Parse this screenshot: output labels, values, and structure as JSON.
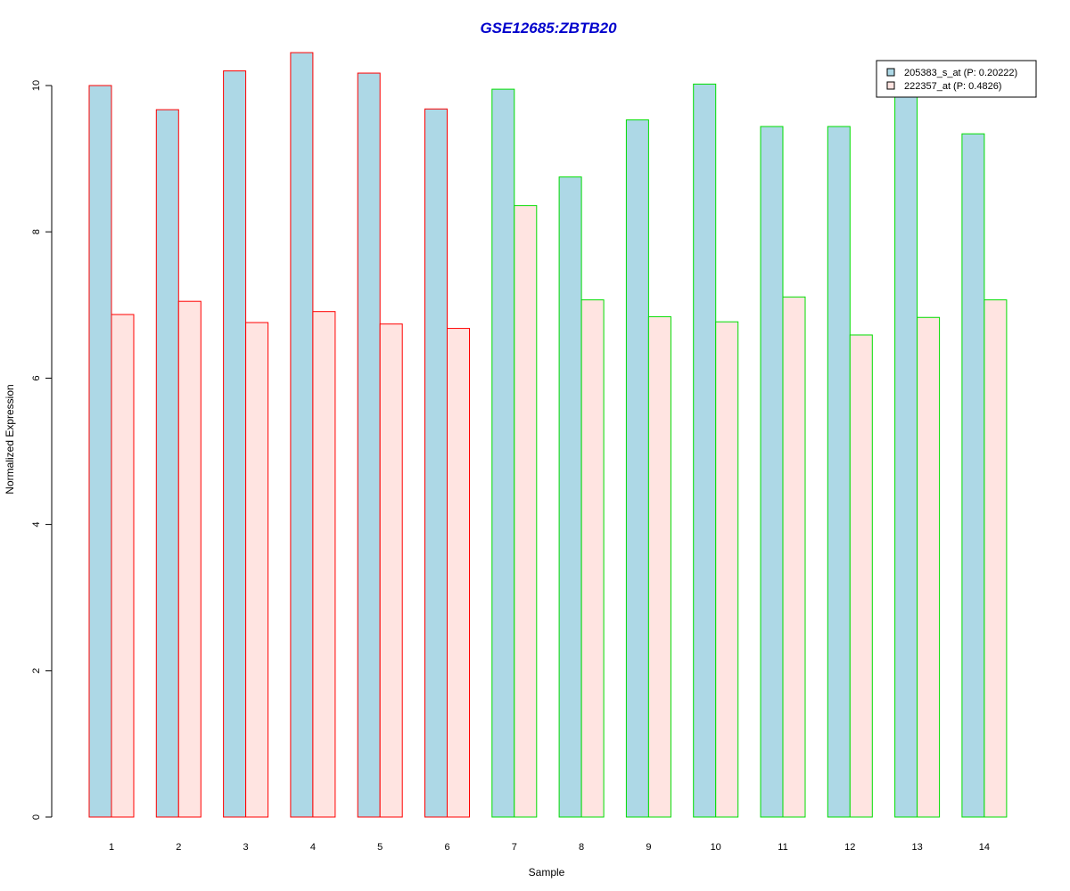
{
  "chart_data": {
    "type": "bar",
    "title": "GSE12685:ZBTB20",
    "xlabel": "Sample",
    "ylabel": "Normalized Expression",
    "categories": [
      "1",
      "2",
      "3",
      "4",
      "5",
      "6",
      "7",
      "8",
      "9",
      "10",
      "11",
      "12",
      "13",
      "14"
    ],
    "ylim": [
      0,
      10.4
    ],
    "yticks": [
      "0",
      "2",
      "4",
      "6",
      "8",
      "10"
    ],
    "series": [
      {
        "name": "205383_s_at (P: 0.20222)",
        "fill": "#add8e6",
        "values": [
          10.0,
          9.67,
          10.2,
          10.45,
          10.17,
          9.68,
          9.95,
          8.75,
          9.53,
          10.02,
          9.44,
          9.44,
          9.9,
          9.34
        ]
      },
      {
        "name": "222357_at (P: 0.4826)",
        "fill": "#ffe4e1",
        "values": [
          6.87,
          7.05,
          6.76,
          6.91,
          6.74,
          6.68,
          8.36,
          7.07,
          6.84,
          6.77,
          7.11,
          6.59,
          6.83,
          7.07
        ]
      }
    ],
    "group_border_colors": [
      "#ff0000",
      "#ff0000",
      "#ff0000",
      "#ff0000",
      "#ff0000",
      "#ff0000",
      "#00dd00",
      "#00dd00",
      "#00dd00",
      "#00dd00",
      "#00dd00",
      "#00dd00",
      "#00dd00",
      "#00dd00"
    ],
    "legend_placement": "top-right",
    "grid": false
  }
}
